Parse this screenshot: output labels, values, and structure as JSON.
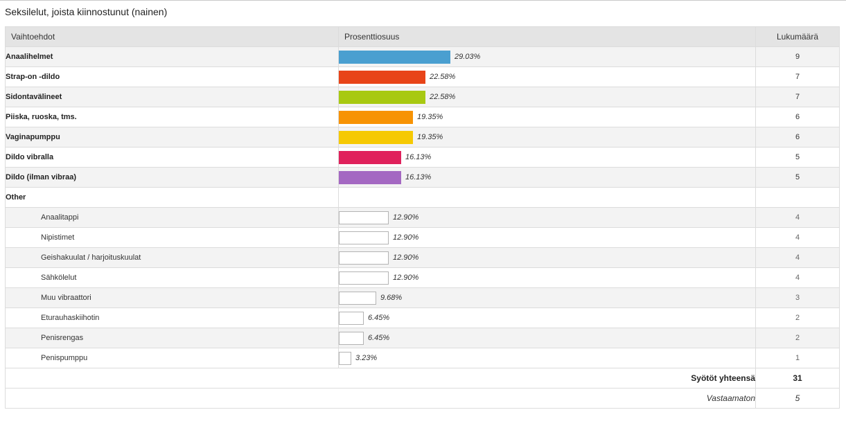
{
  "page": {
    "title": "Seksilelut, joista kiinnostunut (nainen)"
  },
  "table": {
    "headers": {
      "option": "Vaihtoehdot",
      "percent": "Prosenttiosuus",
      "count": "Lukumäärä"
    },
    "other_label": "Other",
    "total_label": "Syötöt yhteensä",
    "total_value": "31",
    "unanswered_label": "Vastaamaton",
    "unanswered_value": "5"
  },
  "chart_data": {
    "type": "bar",
    "orientation": "horizontal",
    "value_unit": "%",
    "xlim": [
      0,
      100
    ],
    "total_responses": 31,
    "unanswered": 5,
    "categories": [
      "Anaalihelmet",
      "Strap-on -dildo",
      "Sidontavälineet",
      "Piiska, ruoska, tms.",
      "Vaginapumppu",
      "Dildo vibralla",
      "Dildo (ilman vibraa)"
    ],
    "values": [
      29.03,
      22.58,
      22.58,
      19.35,
      19.35,
      16.13,
      16.13
    ],
    "value_labels": [
      "29.03%",
      "22.58%",
      "22.58%",
      "19.35%",
      "19.35%",
      "16.13%",
      "16.13%"
    ],
    "counts": [
      "9",
      "7",
      "7",
      "6",
      "6",
      "5",
      "5"
    ],
    "colors": [
      "#4a9fd0",
      "#e84419",
      "#a8c912",
      "#f79304",
      "#f6c903",
      "#e0215c",
      "#a468c2"
    ],
    "other": {
      "categories": [
        "Anaalitappi",
        "Nipistimet",
        "Geishakuulat / harjoituskuulat",
        "Sähkölelut",
        "Muu vibraattori",
        "Eturauhaskiihotin",
        "Penisrengas",
        "Penispumppu"
      ],
      "values": [
        12.9,
        12.9,
        12.9,
        12.9,
        9.68,
        6.45,
        6.45,
        3.23
      ],
      "value_labels": [
        "12.90%",
        "12.90%",
        "12.90%",
        "12.90%",
        "9.68%",
        "6.45%",
        "6.45%",
        "3.23%"
      ],
      "counts": [
        "4",
        "4",
        "4",
        "4",
        "3",
        "2",
        "2",
        "1"
      ],
      "bar_fill": "#ffffff",
      "bar_border": "#b3b3b3"
    }
  }
}
